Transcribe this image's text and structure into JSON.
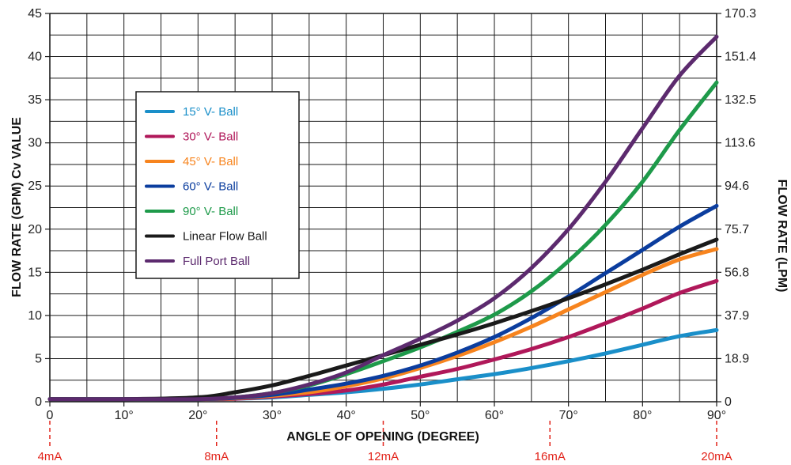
{
  "chart_data": {
    "type": "line",
    "xlabel": "ANGLE OF OPENING (DEGREE)",
    "ylabel": "FLOW RATE (GPM) Cv VALUE",
    "ylabel_right": "FLOW RATE (LPM)",
    "xlim": [
      0,
      90
    ],
    "ylim": [
      0,
      45
    ],
    "grid": true,
    "legend_position": "upper-left",
    "x_ticks": [
      "0",
      "10°",
      "20°",
      "30°",
      "40°",
      "50°",
      "60°",
      "70°",
      "80°",
      "90°"
    ],
    "y_ticks": [
      "0",
      "5",
      "10",
      "15",
      "20",
      "25",
      "30",
      "35",
      "40",
      "45"
    ],
    "y_right_ticks": [
      "0",
      "18.9",
      "37.9",
      "56.8",
      "75.7",
      "94.6",
      "113.6",
      "132.5",
      "151.4",
      "170.3"
    ],
    "ma_markers": [
      {
        "label": "4mA",
        "x": 0
      },
      {
        "label": "8mA",
        "x": 22.5
      },
      {
        "label": "12mA",
        "x": 45
      },
      {
        "label": "16mA",
        "x": 67.5
      },
      {
        "label": "20mA",
        "x": 90
      }
    ],
    "x": [
      0,
      10,
      20,
      25,
      30,
      35,
      40,
      45,
      50,
      55,
      60,
      65,
      70,
      75,
      80,
      85,
      90
    ],
    "series": [
      {
        "name": "15° V- Ball",
        "color": "#1a8fc9",
        "values": [
          0.3,
          0.3,
          0.3,
          0.35,
          0.5,
          0.8,
          1.1,
          1.5,
          2.0,
          2.6,
          3.2,
          3.9,
          4.7,
          5.6,
          6.6,
          7.6,
          8.3
        ]
      },
      {
        "name": "30° V- Ball",
        "color": "#b0185a",
        "values": [
          0.3,
          0.3,
          0.3,
          0.35,
          0.6,
          0.9,
          1.3,
          2.0,
          2.9,
          3.8,
          4.9,
          6.1,
          7.5,
          9.1,
          10.8,
          12.6,
          14.0
        ]
      },
      {
        "name": "45° V- Ball",
        "color": "#f7841e",
        "values": [
          0.3,
          0.3,
          0.3,
          0.4,
          0.7,
          1.1,
          1.8,
          2.7,
          3.9,
          5.3,
          6.9,
          8.7,
          10.7,
          12.7,
          14.7,
          16.5,
          17.7
        ]
      },
      {
        "name": "60° V- Ball",
        "color": "#0b3d9e",
        "values": [
          0.3,
          0.3,
          0.3,
          0.45,
          0.8,
          1.4,
          2.1,
          3.0,
          4.2,
          5.7,
          7.5,
          9.7,
          12.2,
          14.9,
          17.6,
          20.3,
          22.7
        ]
      },
      {
        "name": "90° V- Ball",
        "color": "#1e9a4a",
        "values": [
          0.3,
          0.3,
          0.3,
          0.5,
          1.0,
          1.9,
          3.2,
          4.7,
          6.3,
          8.1,
          10.1,
          12.8,
          16.3,
          20.5,
          25.5,
          31.5,
          37.0
        ]
      },
      {
        "name": "Linear Flow Ball",
        "color": "#1a1a1a",
        "values": [
          0.3,
          0.3,
          0.5,
          1.1,
          1.9,
          3.0,
          4.2,
          5.4,
          6.6,
          7.8,
          9.1,
          10.5,
          12.0,
          13.6,
          15.3,
          17.1,
          18.8
        ]
      },
      {
        "name": "Full Port Ball",
        "color": "#5c2a6e",
        "values": [
          0.3,
          0.3,
          0.3,
          0.5,
          1.0,
          2.0,
          3.4,
          5.4,
          7.3,
          9.4,
          12.0,
          15.5,
          20.0,
          25.5,
          31.7,
          37.8,
          42.3
        ]
      }
    ]
  }
}
